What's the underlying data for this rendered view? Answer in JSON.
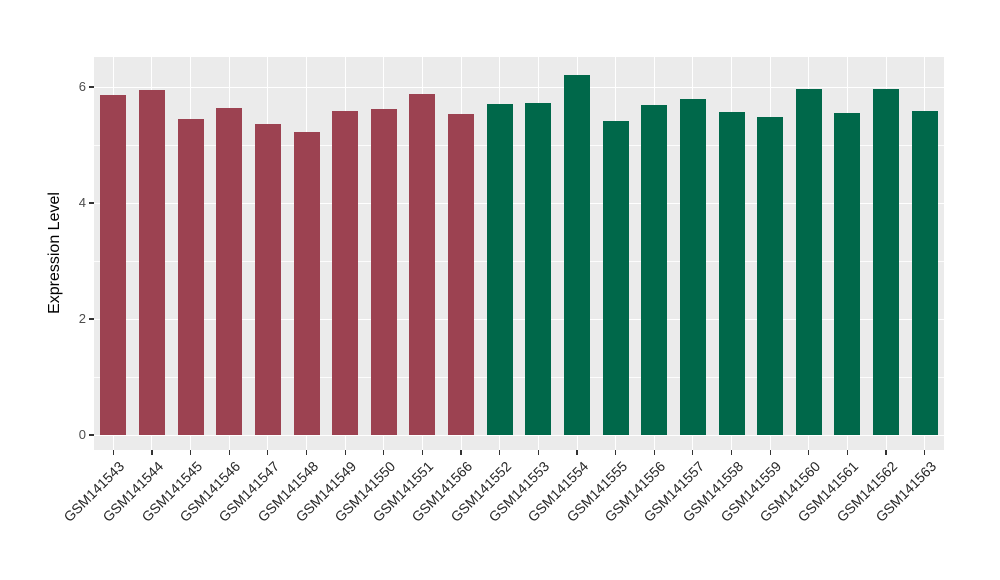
{
  "chart_data": {
    "type": "bar",
    "title": "",
    "xlabel": "",
    "ylabel": "Expression Level",
    "ylim": [
      -0.25,
      6.55
    ],
    "ytick_labels": [
      "0",
      "2",
      "4",
      "6"
    ],
    "ytick_values": [
      0,
      2,
      4,
      6
    ],
    "yminor_values": [
      1,
      3,
      5
    ],
    "grid": "on",
    "legend_position": "none",
    "categories": [
      "GSM141543",
      "GSM141544",
      "GSM141545",
      "GSM141546",
      "GSM141547",
      "GSM141548",
      "GSM141549",
      "GSM141550",
      "GSM141551",
      "GSM141566",
      "GSM141552",
      "GSM141553",
      "GSM141554",
      "GSM141555",
      "GSM141556",
      "GSM141557",
      "GSM141558",
      "GSM141559",
      "GSM141560",
      "GSM141561",
      "GSM141562",
      "GSM141563"
    ],
    "values": [
      5.87,
      5.94,
      5.45,
      5.64,
      5.36,
      5.22,
      5.59,
      5.62,
      5.88,
      5.53,
      5.7,
      5.72,
      6.2,
      5.41,
      5.69,
      5.79,
      5.57,
      5.48,
      5.97,
      5.55,
      5.96,
      5.59
    ],
    "bar_groups": [
      "A",
      "A",
      "A",
      "A",
      "A",
      "A",
      "A",
      "A",
      "A",
      "A",
      "B",
      "B",
      "B",
      "B",
      "B",
      "B",
      "B",
      "B",
      "B",
      "B",
      "B",
      "B"
    ],
    "group_colors": {
      "A": "#9C4251",
      "B": "#00684A"
    },
    "panel_background": "#EBEBEB",
    "gridline_color": "#FFFFFF",
    "axis_text_color": "#4D4D4D",
    "x_text_color": "#262626"
  }
}
